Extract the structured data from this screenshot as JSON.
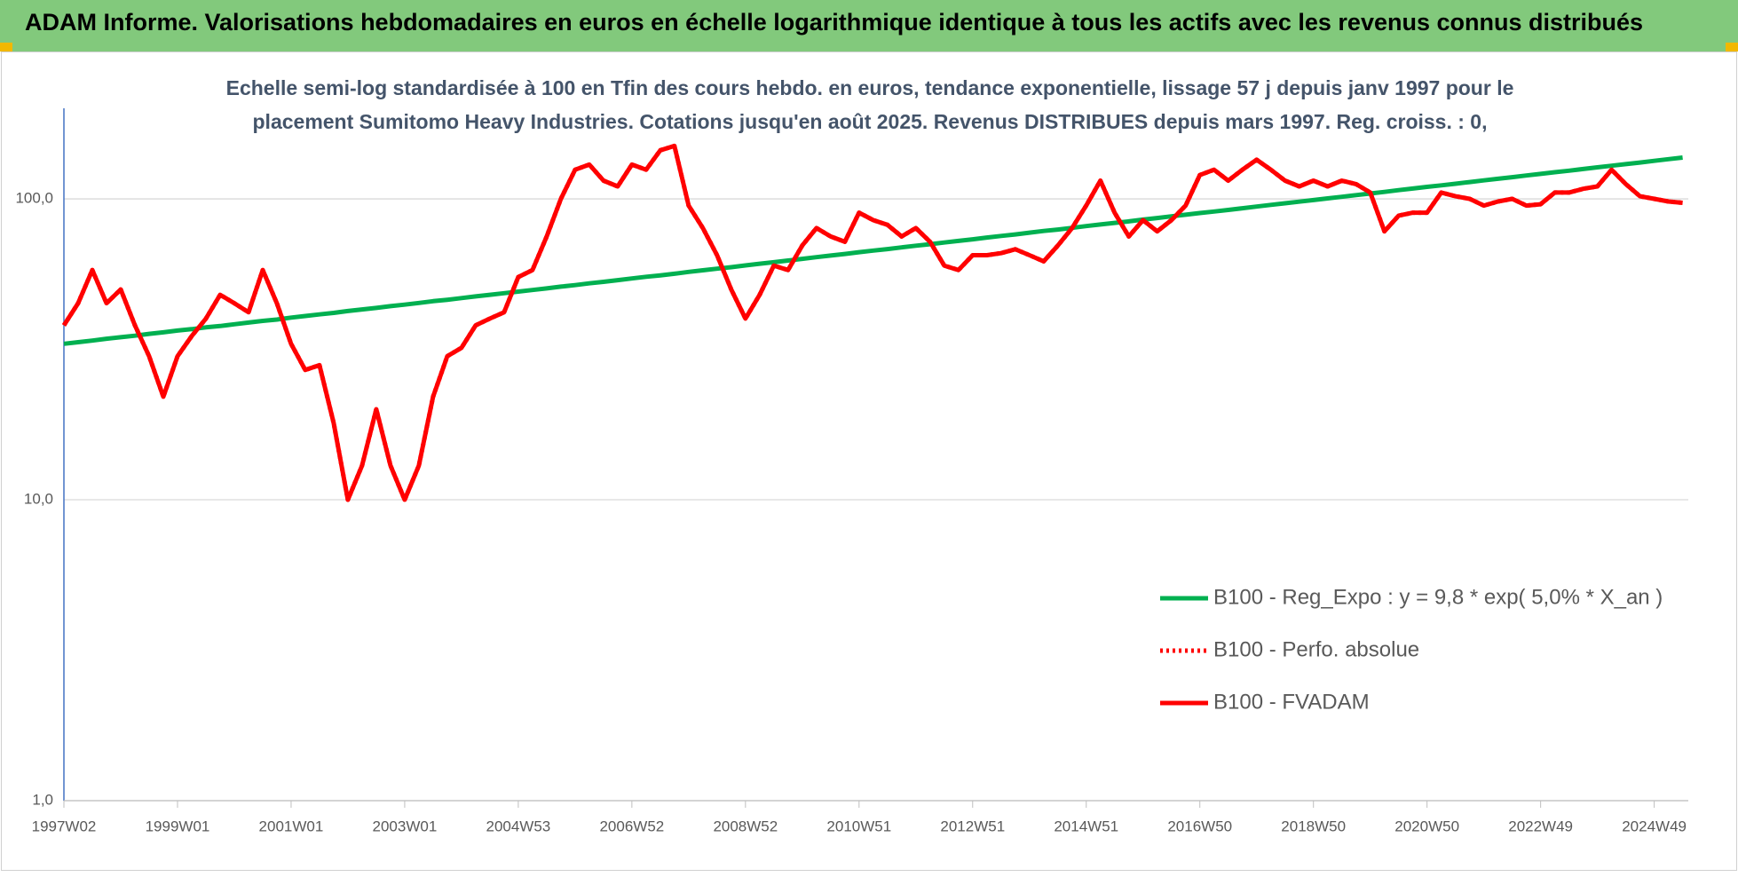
{
  "chart_data": {
    "type": "line",
    "header": "ADAM Informe. Valorisations hebdomadaires en euros en échelle logarithmique identique à tous les actifs avec les revenus connus distribués",
    "title": [
      "Echelle semi-log standardisée à 100 en Tfin des cours hebdo. en euros, tendance exponentielle, lissage 57 j depuis janv 1997 pour le",
      "placement Sumitomo Heavy Industries. Cotations jusqu'en août 2025. Revenus DISTRIBUES depuis mars 1997. Reg. croiss. : 0,"
    ],
    "log_scale": true,
    "grid": true,
    "legend": "right",
    "ylim": [
      1,
      200
    ],
    "yticks": [
      {
        "value": 1,
        "label": "1,0"
      },
      {
        "value": 10,
        "label": "10,0"
      },
      {
        "value": 100,
        "label": "100,0"
      }
    ],
    "categories": [
      "1997W02",
      null,
      null,
      null,
      null,
      null,
      null,
      null,
      "1999W01",
      null,
      null,
      null,
      null,
      null,
      null,
      null,
      "2001W01",
      null,
      null,
      null,
      null,
      null,
      null,
      null,
      "2003W01",
      null,
      null,
      null,
      null,
      null,
      null,
      null,
      "2004W53",
      null,
      null,
      null,
      null,
      null,
      null,
      null,
      "2006W52",
      null,
      null,
      null,
      null,
      null,
      null,
      null,
      "2008W52",
      null,
      null,
      null,
      null,
      null,
      null,
      null,
      "2010W51",
      null,
      null,
      null,
      null,
      null,
      null,
      null,
      "2012W51",
      null,
      null,
      null,
      null,
      null,
      null,
      null,
      "2014W51",
      null,
      null,
      null,
      null,
      null,
      null,
      null,
      "2016W50",
      null,
      null,
      null,
      null,
      null,
      null,
      null,
      "2018W50",
      null,
      null,
      null,
      null,
      null,
      null,
      null,
      "2020W50",
      null,
      null,
      null,
      null,
      null,
      null,
      null,
      "2022W49",
      null,
      null,
      null,
      null,
      null,
      null,
      null,
      "2024W49",
      null,
      null
    ],
    "series": [
      {
        "name": "B100 - Reg_Expo : y = 9,8 * exp( 5,0% *  X_an )",
        "color": "#00b050",
        "dash": "solid",
        "values": [
          33.0,
          33.4,
          33.8,
          34.3,
          34.7,
          35.1,
          35.6,
          36.0,
          36.5,
          36.9,
          37.4,
          37.8,
          38.3,
          38.8,
          39.3,
          39.7,
          40.3,
          40.8,
          41.3,
          41.8,
          42.4,
          42.9,
          43.4,
          44.0,
          44.5,
          45.1,
          45.7,
          46.2,
          46.8,
          47.4,
          48.0,
          48.6,
          49.2,
          49.8,
          50.4,
          51.1,
          51.7,
          52.4,
          53.0,
          53.7,
          54.4,
          55.1,
          55.7,
          56.4,
          57.2,
          57.9,
          58.6,
          59.3,
          60.1,
          60.9,
          61.6,
          62.4,
          63.2,
          64.0,
          64.8,
          65.6,
          66.5,
          67.3,
          68.1,
          69.0,
          69.9,
          70.7,
          71.6,
          72.5,
          73.4,
          74.4,
          75.3,
          76.2,
          77.2,
          78.2,
          79.1,
          80.1,
          81.2,
          82.2,
          83.2,
          84.2,
          85.3,
          86.4,
          87.5,
          88.6,
          89.7,
          90.8,
          91.9,
          93.1,
          94.3,
          95.5,
          96.7,
          97.9,
          99.1,
          100.4,
          101.6,
          102.9,
          104.2,
          105.5,
          106.9,
          108.2,
          109.6,
          110.9,
          112.3,
          113.7,
          115.2,
          116.6,
          118.1,
          119.6,
          121.1,
          122.6,
          124.1,
          125.7,
          127.3,
          128.9,
          130.5,
          132.1,
          133.8,
          135.5,
          137.2
        ]
      },
      {
        "name": "B100 - Perfo. absolue",
        "color": "#ff0000",
        "dash": "dotted",
        "values": [
          38,
          45,
          58,
          45,
          50,
          38,
          30,
          22,
          30,
          35,
          40,
          48,
          45,
          42,
          58,
          45,
          33,
          27,
          28,
          18,
          10,
          13,
          20,
          13,
          10,
          13,
          22,
          30,
          32,
          38,
          40,
          42,
          55,
          58,
          75,
          100,
          125,
          130,
          115,
          110,
          130,
          125,
          145,
          150,
          95,
          80,
          65,
          50,
          40,
          48,
          60,
          58,
          70,
          80,
          75,
          72,
          90,
          85,
          82,
          75,
          80,
          72,
          60,
          58,
          65,
          65,
          66,
          68,
          65,
          62,
          70,
          80,
          95,
          115,
          90,
          75,
          85,
          78,
          85,
          95,
          120,
          125,
          115,
          125,
          135,
          125,
          115,
          110,
          115,
          110,
          115,
          112,
          105,
          78,
          88,
          90,
          90,
          105,
          102,
          100,
          95,
          98,
          100,
          95,
          96,
          105,
          105,
          108,
          110,
          125,
          112,
          102,
          100,
          98,
          97
        ]
      },
      {
        "name": "B100 - FVADAM",
        "color": "#ff0000",
        "dash": "solid",
        "values": [
          38,
          45,
          58,
          45,
          50,
          38,
          30,
          22,
          30,
          35,
          40,
          48,
          45,
          42,
          58,
          45,
          33,
          27,
          28,
          18,
          10,
          13,
          20,
          13,
          10,
          13,
          22,
          30,
          32,
          38,
          40,
          42,
          55,
          58,
          75,
          100,
          125,
          130,
          115,
          110,
          130,
          125,
          145,
          150,
          95,
          80,
          65,
          50,
          40,
          48,
          60,
          58,
          70,
          80,
          75,
          72,
          90,
          85,
          82,
          75,
          80,
          72,
          60,
          58,
          65,
          65,
          66,
          68,
          65,
          62,
          70,
          80,
          95,
          115,
          90,
          75,
          85,
          78,
          85,
          95,
          120,
          125,
          115,
          125,
          135,
          125,
          115,
          110,
          115,
          110,
          115,
          112,
          105,
          78,
          88,
          90,
          90,
          105,
          102,
          100,
          95,
          98,
          100,
          95,
          96,
          105,
          105,
          108,
          110,
          125,
          112,
          102,
          100,
          98,
          97
        ]
      }
    ]
  }
}
